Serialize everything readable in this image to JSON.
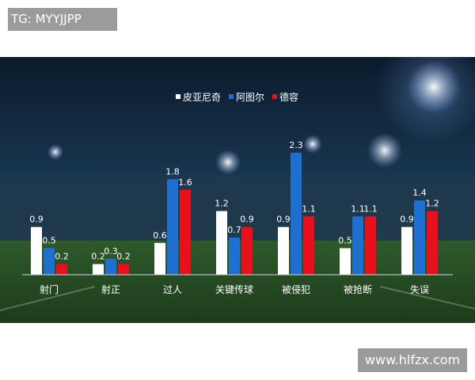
{
  "watermark_top": "TG: MYYJJPP",
  "watermark_bottom": "www.hlfzx.com",
  "colors": {
    "series": [
      "#ffffff",
      "#1f6fd0",
      "#e8101a"
    ],
    "axis": "#cfd8e0",
    "label": "#ffffff"
  },
  "chart_data": {
    "type": "bar",
    "title": "",
    "xlabel": "",
    "ylabel": "",
    "legend": "top-center",
    "grid": false,
    "ylim": [
      0,
      2.5
    ],
    "categories": [
      "射门",
      "射正",
      "过人",
      "关键传球",
      "被侵犯",
      "被抢断",
      "失误"
    ],
    "series": [
      {
        "name": "皮亚尼奇",
        "values": [
          0.9,
          0.2,
          0.6,
          1.2,
          0.9,
          0.5,
          0.9
        ]
      },
      {
        "name": "阿图尔",
        "values": [
          0.5,
          0.3,
          1.8,
          0.7,
          2.3,
          1.1,
          1.4
        ]
      },
      {
        "name": "德容",
        "values": [
          0.2,
          0.2,
          1.6,
          0.9,
          1.1,
          1.1,
          1.2
        ]
      }
    ]
  }
}
